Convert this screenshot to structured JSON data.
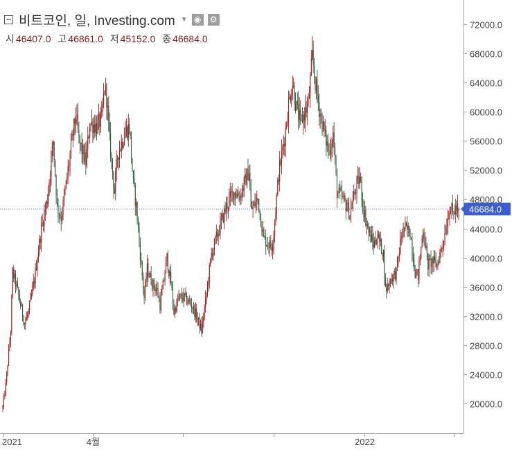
{
  "legend": {
    "title": "비트코인, 일, Investing.com",
    "ohlc": [
      {
        "label": "시",
        "value": "46407.0"
      },
      {
        "label": "고",
        "value": "46861.0"
      },
      {
        "label": "저",
        "value": "45152.0"
      },
      {
        "label": "종",
        "value": "46684.0"
      }
    ]
  },
  "price_tag": "46684.0",
  "colors": {
    "up": "#a31e1e",
    "down": "#2f5f3f",
    "price_line": "#4f6fc6",
    "tag_bg": "#3b5fcf"
  },
  "chart_data": {
    "type": "candlestick",
    "ylim": [
      16000,
      74000
    ],
    "y_ticks": [
      20000,
      24000,
      28000,
      32000,
      36000,
      40000,
      44000,
      48000,
      52000,
      56000,
      60000,
      64000,
      68000,
      72000
    ],
    "y_tick_labels": [
      "20000.0",
      "24000.0",
      "28000.0",
      "32000.0",
      "36000.0",
      "40000.0",
      "44000.0",
      "48000.0",
      "52000.0",
      "56000.0",
      "60000.0",
      "64000.0",
      "68000.0",
      "72000.0"
    ],
    "x_labels": [
      {
        "text": "2021",
        "date": "2021-01-01"
      },
      {
        "text": "4월",
        "date": "2021-04-01"
      },
      {
        "text": "",
        "date": "2021-07-01"
      },
      {
        "text": "",
        "date": "2021-10-01"
      },
      {
        "text": "2022",
        "date": "2022-01-01"
      },
      {
        "text": "",
        "date": "2022-04-01"
      }
    ],
    "x_range": [
      "2020-12-31",
      "2022-04-06"
    ],
    "last_close": 46684.0,
    "close_path": [
      [
        "2020-12-31",
        19500
      ],
      [
        "2021-01-03",
        22500
      ],
      [
        "2021-01-08",
        30000
      ],
      [
        "2021-01-10",
        38000
      ],
      [
        "2021-01-14",
        36000
      ],
      [
        "2021-01-22",
        31000
      ],
      [
        "2021-01-26",
        32500
      ],
      [
        "2021-02-01",
        37000
      ],
      [
        "2021-02-08",
        44000
      ],
      [
        "2021-02-14",
        48000
      ],
      [
        "2021-02-20",
        56000
      ],
      [
        "2021-02-24",
        47000
      ],
      [
        "2021-02-28",
        45500
      ],
      [
        "2021-03-05",
        50000
      ],
      [
        "2021-03-12",
        57000
      ],
      [
        "2021-03-15",
        59500
      ],
      [
        "2021-03-18",
        56000
      ],
      [
        "2021-03-25",
        53000
      ],
      [
        "2021-03-29",
        58500
      ],
      [
        "2021-04-05",
        58000
      ],
      [
        "2021-04-10",
        59000
      ],
      [
        "2021-04-13",
        63500
      ],
      [
        "2021-04-15",
        62000
      ],
      [
        "2021-04-18",
        56000
      ],
      [
        "2021-04-23",
        49000
      ],
      [
        "2021-04-26",
        54000
      ],
      [
        "2021-05-03",
        57000
      ],
      [
        "2021-05-08",
        58000
      ],
      [
        "2021-05-12",
        50000
      ],
      [
        "2021-05-15",
        47000
      ],
      [
        "2021-05-19",
        40500
      ],
      [
        "2021-05-23",
        34500
      ],
      [
        "2021-05-26",
        38500
      ],
      [
        "2021-05-31",
        36500
      ],
      [
        "2021-06-05",
        35500
      ],
      [
        "2021-06-08",
        33500
      ],
      [
        "2021-06-12",
        37000
      ],
      [
        "2021-06-15",
        40000
      ],
      [
        "2021-06-20",
        35500
      ],
      [
        "2021-06-22",
        32500
      ],
      [
        "2021-06-27",
        34500
      ],
      [
        "2021-07-03",
        34500
      ],
      [
        "2021-07-10",
        33500
      ],
      [
        "2021-07-15",
        32000
      ],
      [
        "2021-07-20",
        30000
      ],
      [
        "2021-07-25",
        35000
      ],
      [
        "2021-07-30",
        40500
      ],
      [
        "2021-08-07",
        44000
      ],
      [
        "2021-08-14",
        47000
      ],
      [
        "2021-08-21",
        49000
      ],
      [
        "2021-08-28",
        48500
      ],
      [
        "2021-09-06",
        52000
      ],
      [
        "2021-09-08",
        46500
      ],
      [
        "2021-09-15",
        48000
      ],
      [
        "2021-09-21",
        42500
      ],
      [
        "2021-09-29",
        41500
      ],
      [
        "2021-10-01",
        43500
      ],
      [
        "2021-10-06",
        51500
      ],
      [
        "2021-10-12",
        56500
      ],
      [
        "2021-10-16",
        61000
      ],
      [
        "2021-10-20",
        64000
      ],
      [
        "2021-10-24",
        60500
      ],
      [
        "2021-10-28",
        58500
      ],
      [
        "2021-11-05",
        61000
      ],
      [
        "2021-11-09",
        67500
      ],
      [
        "2021-11-12",
        64000
      ],
      [
        "2021-11-16",
        60500
      ],
      [
        "2021-11-22",
        56500
      ],
      [
        "2021-11-26",
        54500
      ],
      [
        "2021-11-30",
        57000
      ],
      [
        "2021-12-04",
        49000
      ],
      [
        "2021-12-10",
        48000
      ],
      [
        "2021-12-14",
        47000
      ],
      [
        "2021-12-17",
        46000
      ],
      [
        "2021-12-22",
        49000
      ],
      [
        "2021-12-27",
        51000
      ],
      [
        "2021-12-31",
        46500
      ],
      [
        "2022-01-05",
        43500
      ],
      [
        "2022-01-10",
        41800
      ],
      [
        "2022-01-14",
        43000
      ],
      [
        "2022-01-20",
        40500
      ],
      [
        "2022-01-22",
        35500
      ],
      [
        "2022-01-27",
        37000
      ],
      [
        "2022-02-02",
        38000
      ],
      [
        "2022-02-07",
        43000
      ],
      [
        "2022-02-10",
        44000
      ],
      [
        "2022-02-16",
        43500
      ],
      [
        "2022-02-21",
        38000
      ],
      [
        "2022-02-24",
        37500
      ],
      [
        "2022-03-01",
        44000
      ],
      [
        "2022-03-06",
        39000
      ],
      [
        "2022-03-10",
        39500
      ],
      [
        "2022-03-15",
        39000
      ],
      [
        "2022-03-20",
        41500
      ],
      [
        "2022-03-24",
        44000
      ],
      [
        "2022-03-28",
        47000
      ],
      [
        "2022-03-31",
        46000
      ],
      [
        "2022-04-03",
        46700
      ],
      [
        "2022-04-06",
        46684
      ]
    ]
  }
}
